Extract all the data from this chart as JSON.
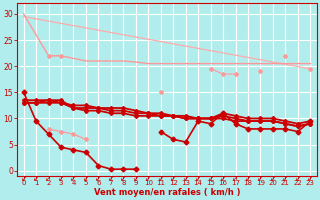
{
  "background_color": "#b2eded",
  "grid_color": "#ffffff",
  "x_labels": [
    "0",
    "1",
    "2",
    "3",
    "4",
    "5",
    "6",
    "7",
    "8",
    "9",
    "10",
    "11",
    "12",
    "13",
    "14",
    "15",
    "16",
    "17",
    "18",
    "19",
    "20",
    "21",
    "22",
    "23"
  ],
  "xlabel": "Vent moyen/en rafales ( km/h )",
  "yticks": [
    0,
    5,
    10,
    15,
    20,
    25,
    30
  ],
  "ylim": [
    -1,
    32
  ],
  "xlim": [
    -0.5,
    23.5
  ],
  "line_diagonal_light": {
    "color": "#ffaaaa",
    "lw": 0.9,
    "x": [
      0,
      23
    ],
    "y": [
      29.5,
      19.5
    ]
  },
  "line_top_step": {
    "color": "#ff9999",
    "lw": 1.0,
    "y": [
      30,
      26,
      22,
      22,
      21.5,
      21,
      21,
      21,
      21,
      20.8,
      20.5,
      20.5,
      20.5,
      20.5,
      20.5,
      20.5,
      20.5,
      20.5,
      20.5,
      20.5,
      20.5,
      20.5,
      20.5,
      20.5
    ]
  },
  "line_upper_markers": {
    "color": "#ff9999",
    "lw": 0.8,
    "marker": "D",
    "ms": 2,
    "y": [
      null,
      null,
      22,
      22,
      null,
      null,
      null,
      null,
      null,
      null,
      null,
      15,
      null,
      null,
      null,
      19.5,
      18.5,
      18.5,
      null,
      19,
      null,
      22,
      null,
      19.5
    ]
  },
  "line_mid_pink": {
    "color": "#ff9999",
    "lw": 0.9,
    "marker": "D",
    "ms": 2,
    "y": [
      null,
      null,
      8,
      7.5,
      7,
      6,
      null,
      null,
      null,
      null,
      null,
      null,
      null,
      null,
      null,
      null,
      null,
      null,
      null,
      null,
      null,
      null,
      null,
      null
    ]
  },
  "line_main_jagged": {
    "color": "#cc0000",
    "lw": 1.2,
    "marker": "D",
    "ms": 2.5,
    "y": [
      15,
      9.5,
      7,
      4.5,
      4,
      3.5,
      1,
      0.3,
      0.3,
      0.3,
      null,
      7.5,
      6,
      5.5,
      9.5,
      9,
      11,
      9,
      8,
      8,
      8,
      8,
      7.5,
      9.5
    ]
  },
  "lines_cluster": [
    {
      "color": "#cc0000",
      "lw": 1.3,
      "marker": "D",
      "ms": 2,
      "y": [
        13.5,
        13.5,
        13.5,
        13.5,
        12,
        12,
        12,
        12,
        12,
        11.5,
        11,
        11,
        10.5,
        10.5,
        10,
        10,
        11,
        10.5,
        10,
        10,
        10,
        9.5,
        9,
        9.5
      ]
    },
    {
      "color": "#cc0000",
      "lw": 1.3,
      "marker": "D",
      "ms": 2,
      "y": [
        13,
        13,
        13,
        13,
        12.5,
        12.5,
        12,
        11.5,
        11.5,
        11,
        11,
        10.5,
        10.5,
        10,
        10,
        10,
        10.5,
        10,
        9.5,
        9.5,
        9.5,
        9,
        8.5,
        9
      ]
    },
    {
      "color": "#cc0000",
      "lw": 1.3,
      "marker": "D",
      "ms": 2,
      "y": [
        13,
        13,
        13.5,
        13,
        12,
        11.5,
        11.5,
        11,
        11,
        10.5,
        10.5,
        10.5,
        10.5,
        10,
        10,
        10,
        10,
        9.5,
        9.5,
        9.5,
        9.5,
        9,
        8.5,
        9
      ]
    }
  ],
  "arrow_color": "#cc0000",
  "arrow_char": "↙",
  "arrow_fontsize": 5.5
}
